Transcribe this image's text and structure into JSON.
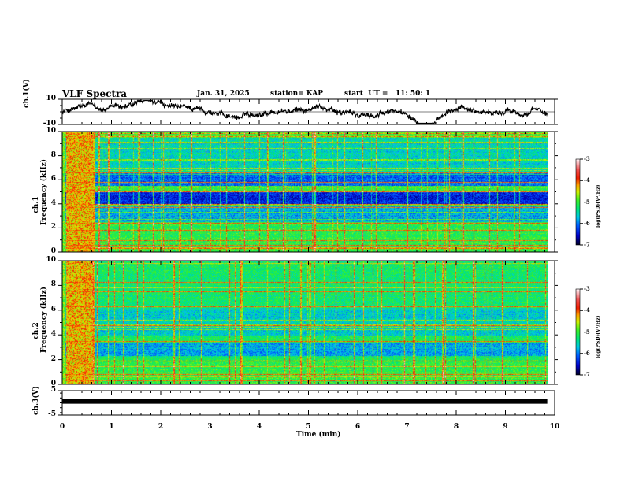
{
  "header": {
    "title": "VLF Spectra",
    "date": "Jan. 31, 2025",
    "station": "station= KAP",
    "start": "start  UT =   11: 50: 1"
  },
  "chart_data": [
    {
      "type": "line",
      "name": "ch1-waveform",
      "ylabel": "ch.1(V)",
      "ylim": [
        -10,
        10
      ],
      "yticks": [
        "10",
        "-10"
      ],
      "xlim": [
        0,
        10
      ],
      "x_data_end": 9.85
    },
    {
      "type": "heatmap",
      "name": "ch1-spectrogram",
      "ylabel_line1": "ch.1",
      "ylabel_line2": "Frequency (kHz)",
      "ylim": [
        0,
        10
      ],
      "yticks": [
        "0",
        "2",
        "4",
        "6",
        "8",
        "10"
      ],
      "xlim": [
        0,
        10
      ],
      "colorbar": {
        "label": "log(PSD)(V²/Hz)",
        "range": [
          -7,
          -3
        ],
        "ticks": [
          "-3",
          "-4",
          "-5",
          "-6",
          "-7"
        ]
      }
    },
    {
      "type": "heatmap",
      "name": "ch2-spectrogram",
      "ylabel_line1": "ch.2",
      "ylabel_line2": "Frequency (kHz)",
      "ylim": [
        0,
        10
      ],
      "yticks": [
        "0",
        "2",
        "4",
        "6",
        "8",
        "10"
      ],
      "xlim": [
        0,
        10
      ],
      "colorbar": {
        "label": "log(PSD)(V²/Hz)",
        "range": [
          -7,
          -3
        ],
        "ticks": [
          "-3",
          "-4",
          "-5",
          "-6",
          "-7"
        ]
      }
    },
    {
      "type": "line",
      "name": "ch3-waveform",
      "ylabel": "ch.3(V)",
      "ylim": [
        -5,
        5
      ],
      "yticks": [
        "5",
        "-5"
      ],
      "level": 0.6,
      "xlim": [
        0,
        10
      ],
      "xlabel": "Time (min)",
      "xticks": [
        "0",
        "1",
        "2",
        "3",
        "4",
        "5",
        "6",
        "7",
        "8",
        "9",
        "10"
      ]
    }
  ],
  "colors": {
    "axis": "#000000"
  }
}
